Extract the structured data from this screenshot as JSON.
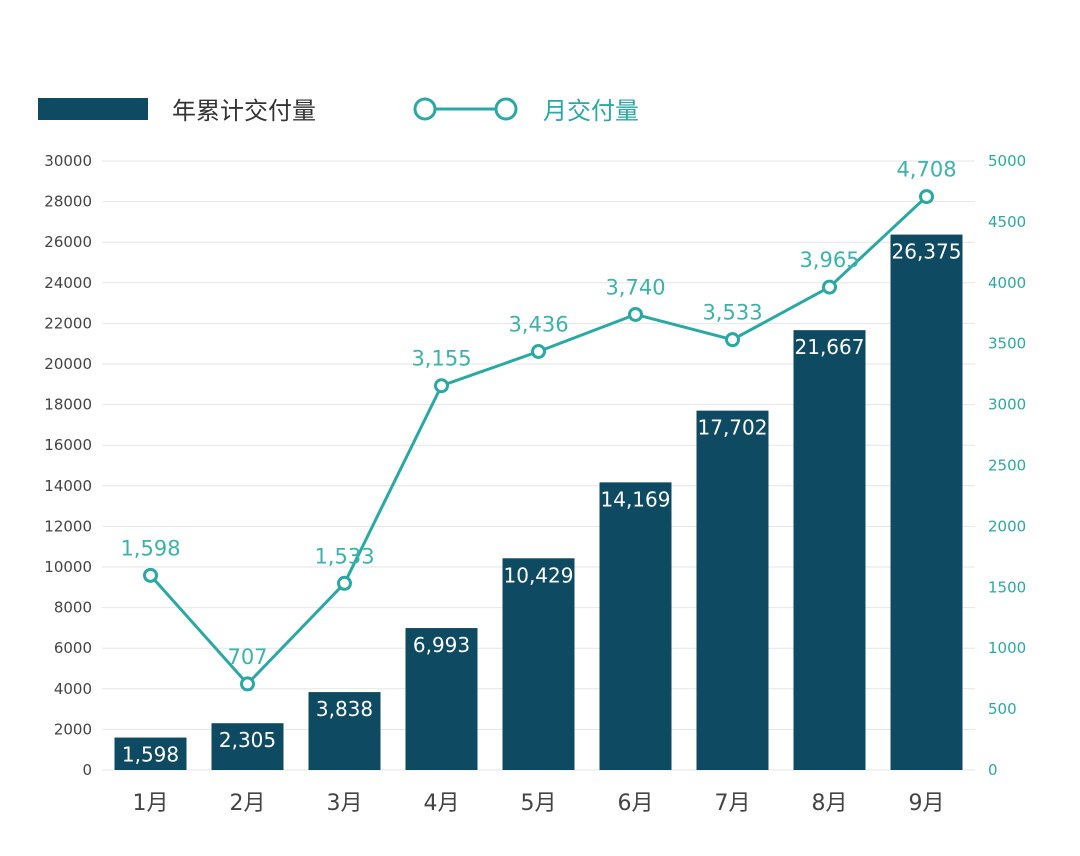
{
  "legend": {
    "bar_label": "年累计交付量",
    "line_label": "月交付量"
  },
  "colors": {
    "bar": "#0f4a63",
    "line": "#2aa9a4",
    "line_text": "#3bb3ad",
    "grid": "#e6e6e6"
  },
  "chart_data": {
    "type": "bar",
    "categories": [
      "1月",
      "2月",
      "3月",
      "4月",
      "5月",
      "6月",
      "7月",
      "8月",
      "9月"
    ],
    "series": [
      {
        "name": "年累计交付量",
        "type": "bar",
        "axis": "left",
        "values": [
          1598,
          2305,
          3838,
          6993,
          10429,
          14169,
          17702,
          21667,
          26375
        ],
        "labels": [
          "1,598",
          "2,305",
          "3,838",
          "6,993",
          "10,429",
          "14,169",
          "17,702",
          "21,667",
          "26,375"
        ]
      },
      {
        "name": "月交付量",
        "type": "line",
        "axis": "right",
        "values": [
          1598,
          707,
          1533,
          3155,
          3436,
          3740,
          3533,
          3965,
          4708
        ],
        "labels": [
          "1,598",
          "707",
          "1,533",
          "3,155",
          "3,436",
          "3,740",
          "3,533",
          "3,965",
          "4,708"
        ]
      }
    ],
    "y_left": {
      "ylim": [
        0,
        30000
      ],
      "ticks": [
        "0",
        "2000",
        "4000",
        "6000",
        "8000",
        "10000",
        "12000",
        "14000",
        "16000",
        "18000",
        "20000",
        "22000",
        "24000",
        "26000",
        "28000",
        "30000"
      ]
    },
    "y_right": {
      "ylim": [
        0,
        5000
      ],
      "ticks": [
        "0",
        "500",
        "1000",
        "1500",
        "2000",
        "2500",
        "3000",
        "3500",
        "4000",
        "4500",
        "5000"
      ]
    },
    "grid": true,
    "legend_position": "top-left"
  }
}
